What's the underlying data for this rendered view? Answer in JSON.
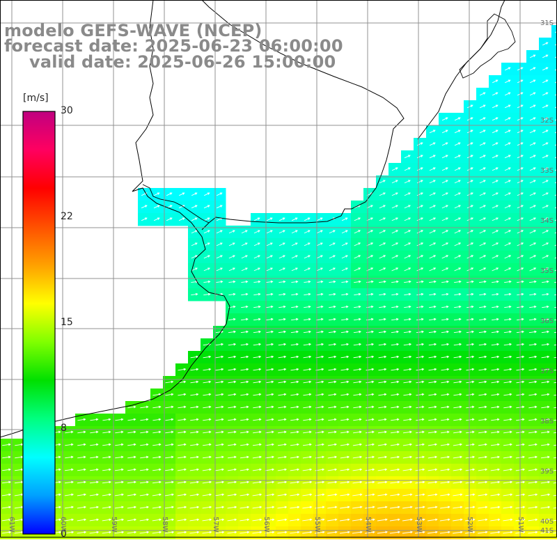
{
  "header": {
    "model": "modelo GEFS-WAVE (NCEP)",
    "forecast": "forecast date: 2025-06-23 06:00:00",
    "valid": "valid date: 2025-06-26 15:00:00"
  },
  "colorbar": {
    "unit": "[m/s]",
    "ticks": [
      "30",
      "22",
      "15",
      "8",
      "0"
    ],
    "min": 0,
    "max": 30,
    "colors": [
      "#0000ff",
      "#00a0ff",
      "#00ffff",
      "#00ff80",
      "#00e000",
      "#80ff00",
      "#ffff00",
      "#ffa000",
      "#ff5000",
      "#ff0000",
      "#ff0060",
      "#c00080"
    ]
  },
  "map": {
    "lon_labels": [
      "61W",
      "60W",
      "59W",
      "58W",
      "57W",
      "56W",
      "55W",
      "54W",
      "53W",
      "52W",
      "51W"
    ],
    "lat_labels": [
      "31S",
      "32S",
      "33S",
      "34S",
      "35S",
      "36S",
      "37S",
      "38S",
      "39S",
      "40S",
      "41S"
    ],
    "grid_lines": true,
    "land_color": "#ffffff",
    "coastline_color": "#000000",
    "grid_color": "#909090",
    "arrow_color": "#ffffff",
    "wind_direction": "from south-west / west toward north-east",
    "wind_range_ms": [
      3,
      18
    ]
  }
}
